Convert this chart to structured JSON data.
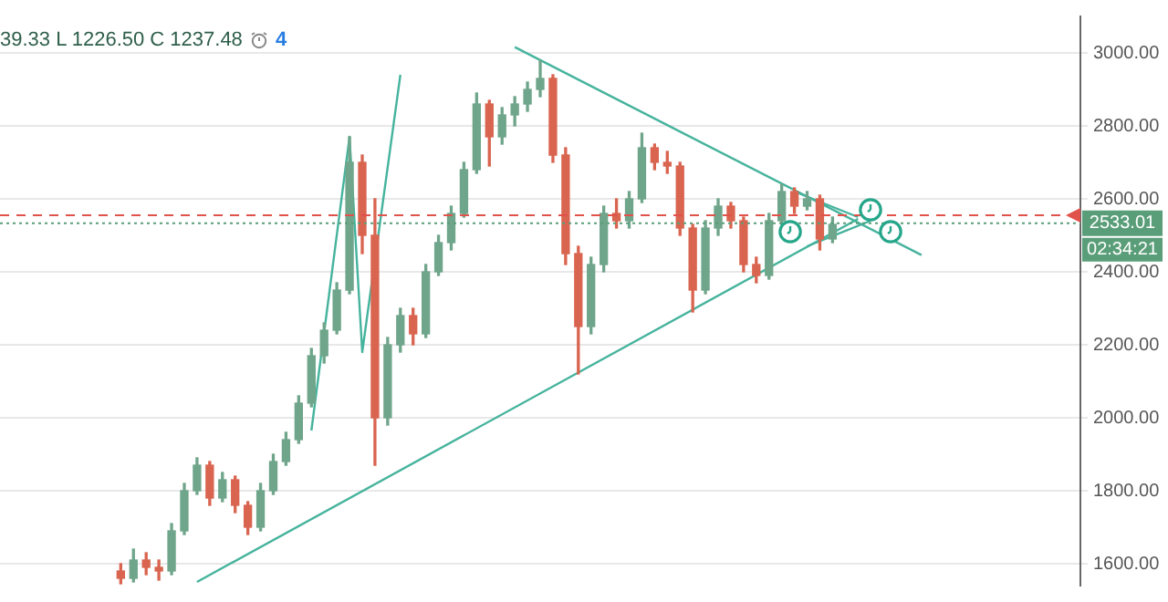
{
  "chart_data": {
    "type": "candlestick",
    "categories": [
      null,
      null,
      null,
      null,
      null,
      null,
      null,
      null,
      null,
      null,
      null,
      null,
      null,
      null,
      null,
      null,
      null,
      null,
      null,
      null,
      null,
      null,
      null,
      null,
      null,
      null,
      null,
      null,
      null,
      null,
      null,
      null,
      null,
      null,
      null,
      null,
      null,
      null,
      null,
      null,
      null,
      null,
      null,
      null,
      null,
      null,
      null,
      null,
      null,
      null,
      null,
      null,
      null,
      null,
      null,
      null,
      null,
      null,
      null,
      null,
      null,
      null,
      null,
      null,
      null,
      null,
      null,
      null,
      null,
      null,
      null,
      null,
      null,
      null,
      null,
      null,
      null,
      null,
      null,
      null,
      null,
      null,
      null,
      null,
      null
    ],
    "ohlc": [
      null,
      null,
      null,
      null,
      null,
      null,
      null,
      null,
      null,
      [
        1580,
        1600,
        1545,
        1560
      ],
      [
        1560,
        1640,
        1550,
        1610
      ],
      [
        1610,
        1630,
        1570,
        1590
      ],
      [
        1590,
        1610,
        1555,
        1580
      ],
      [
        1580,
        1710,
        1570,
        1690
      ],
      [
        1690,
        1820,
        1680,
        1800
      ],
      [
        1800,
        1890,
        1790,
        1870
      ],
      [
        1870,
        1880,
        1760,
        1780
      ],
      [
        1780,
        1850,
        1770,
        1830
      ],
      [
        1830,
        1840,
        1740,
        1760
      ],
      [
        1760,
        1770,
        1680,
        1700
      ],
      [
        1700,
        1820,
        1690,
        1800
      ],
      [
        1800,
        1900,
        1790,
        1880
      ],
      [
        1880,
        1960,
        1870,
        1940
      ],
      [
        1940,
        2060,
        1930,
        2040
      ],
      [
        2040,
        2190,
        2030,
        2170
      ],
      [
        2170,
        2260,
        2150,
        2240
      ],
      [
        2240,
        2370,
        2230,
        2350
      ],
      [
        2350,
        2770,
        2340,
        2700
      ],
      [
        2700,
        2720,
        2450,
        2500
      ],
      [
        2500,
        2600,
        1870,
        2000
      ],
      [
        2000,
        2220,
        1980,
        2200
      ],
      [
        2200,
        2300,
        2180,
        2280
      ],
      [
        2280,
        2300,
        2200,
        2230
      ],
      [
        2230,
        2420,
        2220,
        2400
      ],
      [
        2400,
        2500,
        2390,
        2480
      ],
      [
        2480,
        2580,
        2460,
        2560
      ],
      [
        2560,
        2700,
        2550,
        2680
      ],
      [
        2680,
        2890,
        2670,
        2860
      ],
      [
        2860,
        2870,
        2690,
        2770
      ],
      [
        2770,
        2850,
        2750,
        2830
      ],
      [
        2830,
        2880,
        2800,
        2860
      ],
      [
        2860,
        2920,
        2840,
        2900
      ],
      [
        2900,
        2980,
        2880,
        2930
      ],
      [
        2930,
        2940,
        2700,
        2720
      ],
      [
        2720,
        2740,
        2420,
        2450
      ],
      [
        2450,
        2470,
        2120,
        2250
      ],
      [
        2250,
        2440,
        2230,
        2420
      ],
      [
        2420,
        2580,
        2400,
        2560
      ],
      [
        2560,
        2600,
        2520,
        2540
      ],
      [
        2540,
        2620,
        2520,
        2600
      ],
      [
        2600,
        2780,
        2590,
        2740
      ],
      [
        2740,
        2750,
        2680,
        2700
      ],
      [
        2700,
        2730,
        2670,
        2690
      ],
      [
        2690,
        2700,
        2500,
        2520
      ],
      [
        2520,
        2530,
        2290,
        2350
      ],
      [
        2350,
        2540,
        2340,
        2520
      ],
      [
        2520,
        2600,
        2500,
        2580
      ],
      [
        2580,
        2590,
        2520,
        2540
      ],
      [
        2540,
        2550,
        2400,
        2420
      ],
      [
        2420,
        2440,
        2370,
        2390
      ],
      [
        2390,
        2560,
        2380,
        2540
      ],
      [
        2540,
        2640,
        2530,
        2620
      ],
      [
        2620,
        2630,
        2560,
        2580
      ],
      [
        2580,
        2620,
        2570,
        2600
      ],
      [
        2600,
        2610,
        2460,
        2490
      ],
      [
        2490,
        2550,
        2480,
        2530
      ],
      null,
      null,
      null,
      null,
      null,
      null,
      null,
      null,
      null,
      null,
      null,
      null,
      null,
      null,
      null,
      null,
      null,
      null,
      null
    ],
    "series": [
      {
        "type": "line",
        "color": "#45b39d",
        "values": [
          null,
          null,
          null,
          null,
          null,
          null,
          null,
          null,
          null,
          null,
          null,
          null,
          null,
          null,
          null,
          1550,
          null,
          null,
          null,
          null,
          null,
          null,
          null,
          null,
          null,
          null,
          null,
          null,
          null,
          null,
          null,
          null,
          null,
          null,
          null,
          null,
          null,
          null,
          null,
          null,
          null,
          null,
          null,
          null,
          null,
          null,
          null,
          null,
          null,
          null,
          null,
          null,
          null,
          null,
          null,
          null,
          null,
          null,
          null,
          null,
          null,
          null,
          null,
          null,
          null,
          null,
          null,
          2545,
          null,
          null,
          null,
          null,
          null,
          null,
          null,
          null,
          null,
          null,
          null,
          null,
          null,
          null,
          null,
          null,
          null
        ]
      },
      {
        "type": "line",
        "color": "#45b39d",
        "values": [
          null,
          null,
          null,
          null,
          null,
          null,
          null,
          null,
          null,
          null,
          null,
          null,
          null,
          null,
          null,
          null,
          null,
          null,
          null,
          null,
          null,
          null,
          null,
          null,
          null,
          null,
          null,
          null,
          null,
          null,
          null,
          null,
          null,
          null,
          null,
          null,
          null,
          null,
          null,
          null,
          3016,
          null,
          null,
          null,
          null,
          null,
          null,
          null,
          null,
          null,
          null,
          null,
          null,
          null,
          null,
          null,
          null,
          null,
          null,
          null,
          null,
          null,
          null,
          null,
          null,
          null,
          null,
          null,
          null,
          null,
          null,
          null,
          2446,
          null,
          null,
          null,
          null,
          null,
          null,
          null,
          null,
          null,
          null,
          null,
          null
        ]
      },
      {
        "type": "line",
        "color": "#45b39d",
        "values": [
          null,
          null,
          null,
          null,
          null,
          null,
          null,
          null,
          null,
          null,
          null,
          null,
          null,
          null,
          null,
          null,
          null,
          null,
          null,
          null,
          null,
          null,
          null,
          null,
          1965,
          null,
          null,
          2770,
          2180,
          null,
          null,
          2940,
          null,
          null,
          null,
          null,
          null,
          null,
          null,
          null,
          null,
          null,
          null,
          null,
          null,
          null,
          null,
          null,
          null,
          null,
          null,
          null,
          null,
          null,
          null,
          null,
          null,
          null,
          null,
          null,
          null,
          null,
          null,
          null,
          null,
          null,
          null,
          null,
          null,
          null,
          null,
          null,
          null,
          null,
          null,
          null,
          null,
          null,
          null,
          null,
          null,
          null,
          null,
          null,
          null
        ]
      },
      {
        "type": "line",
        "color": "#45b39d",
        "values": [
          null,
          null,
          null,
          null,
          null,
          null,
          null,
          null,
          null,
          null,
          null,
          null,
          null,
          null,
          null,
          null,
          null,
          null,
          null,
          null,
          null,
          null,
          null,
          null,
          null,
          null,
          null,
          null,
          null,
          null,
          null,
          null,
          null,
          null,
          null,
          null,
          null,
          null,
          null,
          null,
          null,
          null,
          null,
          null,
          null,
          null,
          null,
          null,
          null,
          null,
          null,
          null,
          null,
          null,
          null,
          null,
          null,
          null,
          null,
          null,
          null,
          null,
          2620,
          null,
          null,
          null,
          null,
          2550,
          null,
          null,
          null,
          null,
          null,
          null,
          null,
          null,
          null,
          null,
          null,
          null,
          null,
          null,
          null,
          null,
          null
        ]
      },
      {
        "type": "line",
        "color": "#45b39d",
        "values": [
          null,
          null,
          null,
          null,
          null,
          null,
          null,
          null,
          null,
          null,
          null,
          null,
          null,
          null,
          null,
          null,
          null,
          null,
          null,
          null,
          null,
          null,
          null,
          null,
          null,
          null,
          null,
          null,
          null,
          null,
          null,
          null,
          null,
          null,
          null,
          null,
          null,
          null,
          null,
          null,
          null,
          null,
          null,
          null,
          null,
          null,
          null,
          null,
          null,
          null,
          null,
          null,
          null,
          null,
          null,
          null,
          null,
          null,
          null,
          null,
          null,
          null,
          null,
          2470,
          null,
          null,
          null,
          null,
          2540,
          null,
          null,
          null,
          null,
          null,
          null,
          null,
          null,
          null,
          null,
          null,
          null,
          null,
          null,
          null,
          null
        ]
      }
    ],
    "marker": "none",
    "ylim": [
      1540,
      3100
    ],
    "yticks": [
      {
        "value": 1600,
        "label": "1600.00"
      },
      {
        "value": 1800,
        "label": "1800.00"
      },
      {
        "value": 2000,
        "label": "2000.00"
      },
      {
        "value": 2200,
        "label": "2200.00"
      },
      {
        "value": 2400,
        "label": "2400.00"
      },
      {
        "value": 2600,
        "label": "2600.00"
      },
      {
        "value": 2800,
        "label": "2800.00"
      },
      {
        "value": 3000,
        "label": "3000.00"
      }
    ],
    "grid": "y",
    "ref_lines": [
      {
        "axis": "y",
        "value": 2555,
        "color": "#e0524a",
        "line_style": "dashed"
      },
      {
        "axis": "y",
        "value": 2533.01,
        "label": "2533.01",
        "color": "#5a9e79",
        "line_style": "dotted"
      }
    ],
    "annotations": [
      "39.33 L 1226.50 C 1237.48",
      "4",
      "02:34:21"
    ]
  }
}
